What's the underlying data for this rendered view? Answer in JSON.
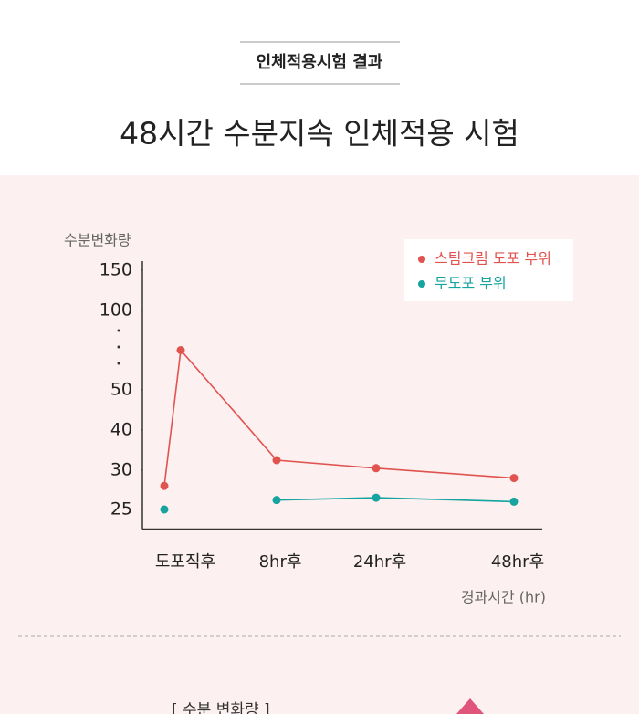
{
  "page": {
    "section_label": "인체적용시험 결과",
    "heading": "48시간 수분지속 인체적용 시험",
    "next_caption": "[ 수분 변화량 ]"
  },
  "chart_data": {
    "type": "line",
    "y_label": "수분변화량",
    "x_label": "경과시간 (hr)",
    "categories": [
      "도포직후",
      null,
      "8hr후",
      "24hr후",
      "48hr후"
    ],
    "series": [
      {
        "name": "스팀크림 도포 부위",
        "color": "#e0534f",
        "values": [
          28,
          75,
          32.5,
          30.5,
          29
        ]
      },
      {
        "name": "무도포 부위",
        "color": "#17a39f",
        "values": [
          25,
          null,
          26.2,
          26.5,
          26
        ]
      }
    ],
    "ylim": [
      22.5,
      150
    ],
    "yticks": [
      150,
      100,
      50,
      40,
      30,
      25
    ],
    "axis_break": true,
    "legend": "top-right"
  }
}
